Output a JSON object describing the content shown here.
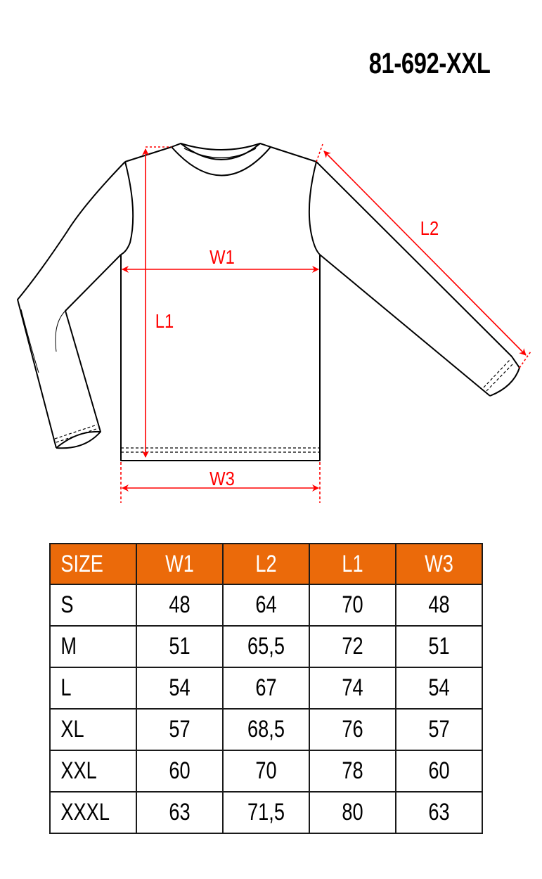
{
  "product_code": "81-692-XXL",
  "diagram": {
    "labels": {
      "w1": "W1",
      "l1": "L1",
      "l2": "L2",
      "w3": "W3"
    },
    "line_color": "#000000",
    "measure_color": "#ff0000"
  },
  "table": {
    "header_color": "#eb6a0a",
    "headers": [
      "SIZE",
      "W1",
      "L2",
      "L1",
      "W3"
    ],
    "rows": [
      [
        "S",
        "48",
        "64",
        "70",
        "48"
      ],
      [
        "M",
        "51",
        "65,5",
        "72",
        "51"
      ],
      [
        "L",
        "54",
        "67",
        "74",
        "54"
      ],
      [
        "XL",
        "57",
        "68,5",
        "76",
        "57"
      ],
      [
        "XXL",
        "60",
        "70",
        "78",
        "60"
      ],
      [
        "XXXL",
        "63",
        "71,5",
        "80",
        "63"
      ]
    ]
  }
}
